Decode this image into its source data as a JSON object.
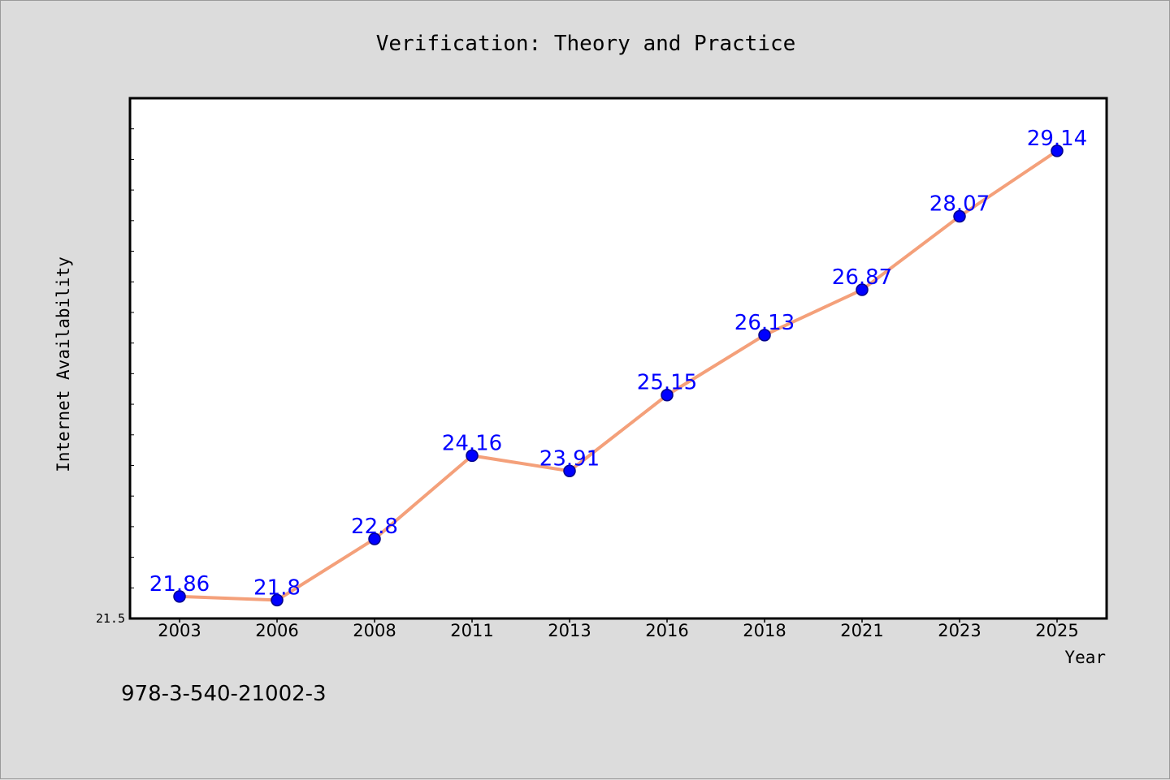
{
  "chart_data": {
    "type": "line",
    "title": "Verification: Theory and Practice",
    "xlabel": "Year",
    "ylabel": "Internet Availability",
    "categories": [
      "2003",
      "2006",
      "2008",
      "2011",
      "2013",
      "2016",
      "2018",
      "2021",
      "2023",
      "2025"
    ],
    "series": [
      {
        "values": [
          21.86,
          21.8,
          22.8,
          24.16,
          23.91,
          25.15,
          26.13,
          26.87,
          28.07,
          29.14
        ],
        "data_labels": [
          "21.86",
          "21.8",
          "22.8",
          "24.16",
          "23.91",
          "25.15",
          "26.13",
          "26.87",
          "28.07",
          "29.14"
        ]
      }
    ],
    "ylim": [
      21.5,
      30.0
    ],
    "y_tick_label": "21.5",
    "grid": false,
    "legend": "none",
    "footer_text": "978-3-540-21002-3",
    "colors": {
      "line": "#f4a07a",
      "marker": "#0000ff",
      "marker_edge": "#00008b",
      "data_label": "#0000ff",
      "plot_background": "#ffffff",
      "page_background": "#dcdcdc"
    }
  }
}
